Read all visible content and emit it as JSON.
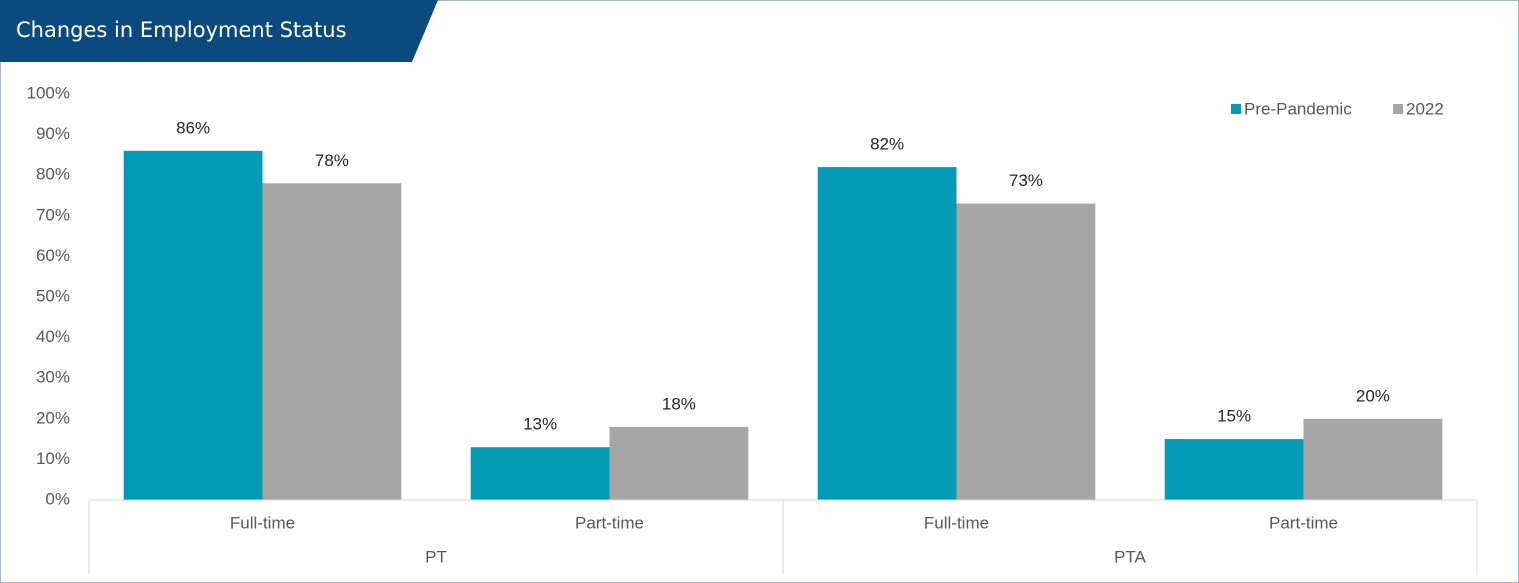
{
  "chart_data": {
    "type": "bar",
    "title": "Changes in Employment Status",
    "groups": [
      {
        "name": "PT",
        "categories": [
          "Full-time",
          "Part-time"
        ]
      },
      {
        "name": "PTA",
        "categories": [
          "Full-time",
          "Part-time"
        ]
      }
    ],
    "series": [
      {
        "name": "Pre-Pandemic",
        "color": "#049bb6",
        "values": [
          86,
          13,
          82,
          15
        ],
        "value_labels": [
          "86%",
          "13%",
          "82%",
          "15%"
        ]
      },
      {
        "name": "2022",
        "color": "#a6a6a6",
        "values": [
          78,
          18,
          73,
          20
        ],
        "value_labels": [
          "78%",
          "18%",
          "73%",
          "20%"
        ]
      }
    ],
    "ylim": [
      0,
      100
    ],
    "yticks": [
      {
        "value": 0,
        "label": "0%"
      },
      {
        "value": 10,
        "label": "10%"
      },
      {
        "value": 20,
        "label": "20%"
      },
      {
        "value": 30,
        "label": "30%"
      },
      {
        "value": 40,
        "label": "40%"
      },
      {
        "value": 50,
        "label": "50%"
      },
      {
        "value": 60,
        "label": "60%"
      },
      {
        "value": 70,
        "label": "70%"
      },
      {
        "value": 80,
        "label": "80%"
      },
      {
        "value": 90,
        "label": "90%"
      },
      {
        "value": 100,
        "label": "100%"
      }
    ],
    "grid": false,
    "legend": "upper right"
  }
}
